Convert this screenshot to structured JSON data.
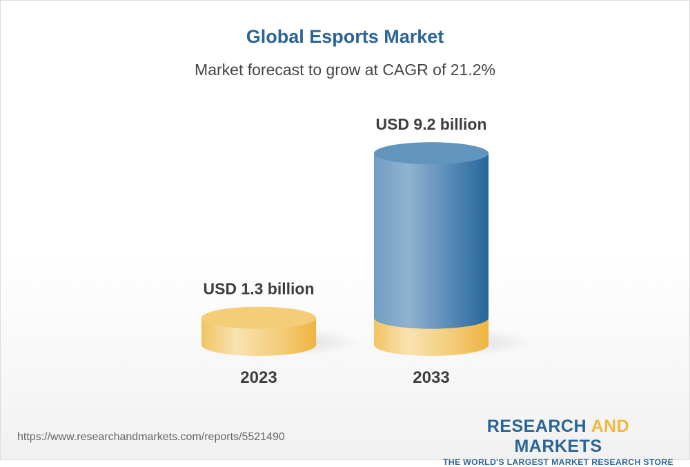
{
  "title": "Global Esports Market",
  "subtitle": "Market forecast to grow at CAGR of 21.2%",
  "chart_data": {
    "type": "bar",
    "style": "3d-cylinder",
    "categories": [
      "2023",
      "2033"
    ],
    "values": [
      1.3,
      9.2
    ],
    "data_labels": [
      "USD 1.3 billion",
      "USD 9.2 billion"
    ],
    "unit": "USD billion",
    "colors": {
      "2023": "#f2c462",
      "2033": "#5b8fba"
    }
  },
  "footer": {
    "url": "https://www.researchandmarkets.com/reports/5521490",
    "logo_part1": "RESEARCH ",
    "logo_part2": "AND",
    "logo_part3": " MARKETS",
    "logo_tagline": "THE WORLD'S LARGEST MARKET RESEARCH STORE"
  }
}
